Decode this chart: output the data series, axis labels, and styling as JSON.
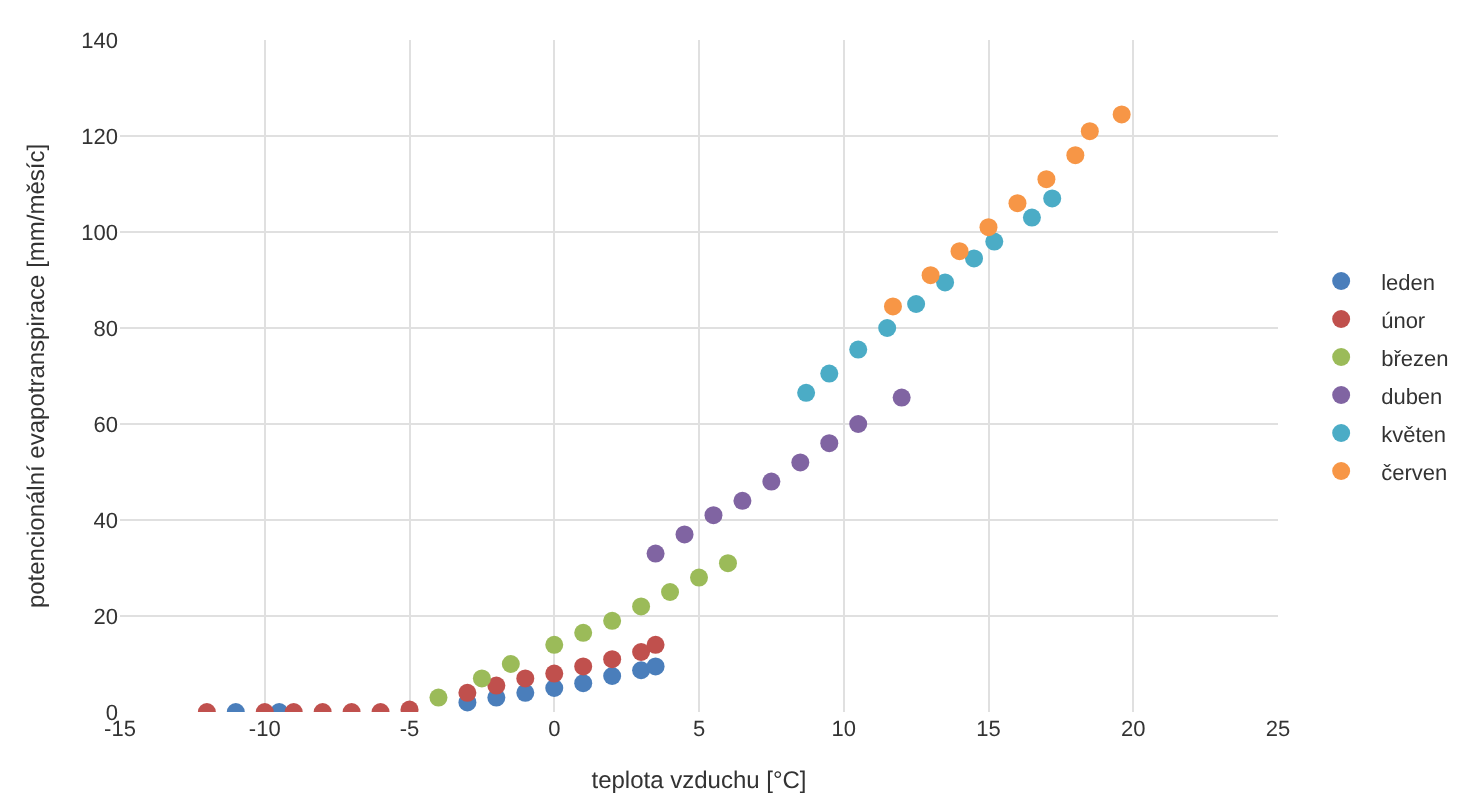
{
  "chart_data": {
    "type": "scatter",
    "xlabel": "teplota vzduchu [°C]",
    "ylabel": "potencionální evapotranspirace [mm/měsíc]",
    "xlim": [
      -15,
      25
    ],
    "xticks": [
      -15,
      -10,
      -5,
      0,
      5,
      10,
      15,
      20,
      25
    ],
    "ylim": [
      0,
      140
    ],
    "yticks": [
      0,
      20,
      40,
      60,
      80,
      100,
      120,
      140
    ],
    "grid": true,
    "legend": "right",
    "marker": "circle",
    "series": [
      {
        "name": "leden",
        "color": "#4a7ebb",
        "x": [
          -11,
          -9.5,
          -3,
          -2,
          -1,
          0,
          1,
          2,
          3,
          3.5
        ],
        "values": [
          0,
          0,
          2,
          3,
          4,
          5,
          6,
          7.5,
          8.7,
          9.5
        ]
      },
      {
        "name": "únor",
        "color": "#c0504d",
        "x": [
          -12,
          -10,
          -9,
          -8,
          -7,
          -6,
          -5,
          -3,
          -2,
          -1,
          0,
          1,
          2,
          3,
          3.5
        ],
        "values": [
          0,
          0,
          0,
          0,
          0,
          0,
          0.5,
          4,
          5.5,
          7,
          8,
          9.5,
          11,
          12.5,
          14
        ]
      },
      {
        "name": "březen",
        "color": "#9bbb59",
        "x": [
          -4,
          -2.5,
          -1.5,
          0,
          1,
          2,
          3,
          4,
          5,
          6
        ],
        "values": [
          3,
          7,
          10,
          14,
          16.5,
          19,
          22,
          25,
          28,
          31
        ]
      },
      {
        "name": "duben",
        "color": "#8064a2",
        "x": [
          3.5,
          4.5,
          5.5,
          6.5,
          7.5,
          8.5,
          9.5,
          10.5,
          12
        ],
        "values": [
          33,
          37,
          41,
          44,
          48,
          52,
          56,
          60,
          65.5
        ]
      },
      {
        "name": "květen",
        "color": "#4bacc6",
        "x": [
          8.7,
          9.5,
          10.5,
          11.5,
          12.5,
          13.5,
          14.5,
          15.2,
          16.5,
          17.2
        ],
        "values": [
          66.5,
          70.5,
          75.5,
          80,
          85,
          89.5,
          94.5,
          98,
          103,
          107
        ]
      },
      {
        "name": "červen",
        "color": "#f79646",
        "x": [
          11.7,
          13,
          14,
          15,
          16,
          17,
          18,
          18.5,
          19.6
        ],
        "values": [
          84.5,
          91,
          96,
          101,
          106,
          111,
          116,
          121,
          124.5
        ]
      }
    ]
  }
}
